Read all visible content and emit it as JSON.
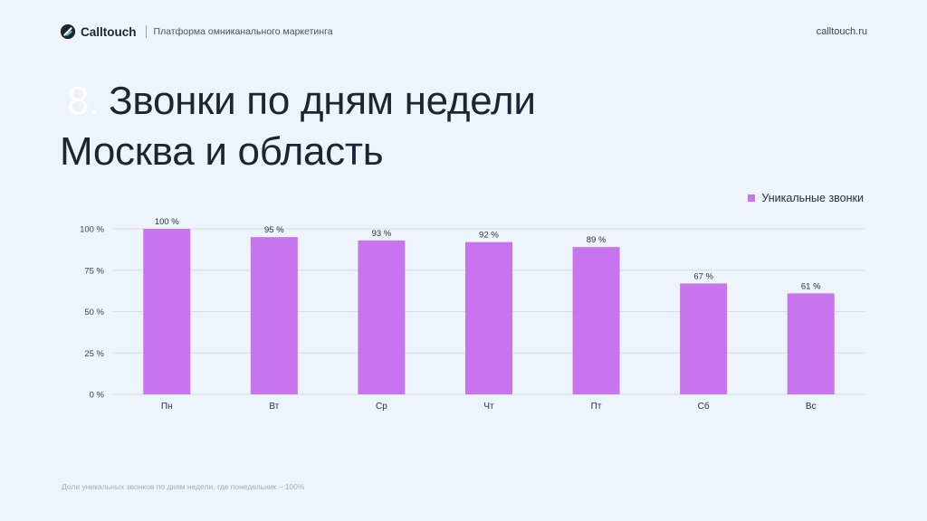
{
  "header": {
    "brand": "Calltouch",
    "tagline": "Платформа омниканального маркетинга",
    "site": "calltouch.ru",
    "logo_icon": "calltouch-logo-icon"
  },
  "title": {
    "number": "8.",
    "line1": "Звонки по дням недели",
    "line2": "Москва и область"
  },
  "footnote": "Доли уникальных звонков по дням недели, где понедельник – 100%",
  "colors": {
    "bar": "#c774ee",
    "grid": "#d7dce3",
    "accent_dark": "#1f2430",
    "accent_teal": "#4cc3d4"
  },
  "chart_data": {
    "type": "bar",
    "categories": [
      "Пн",
      "Вт",
      "Ср",
      "Чт",
      "Пт",
      "Сб",
      "Вс"
    ],
    "series": [
      {
        "name": "Уникальные звонки",
        "values": [
          100,
          95,
          93,
          92,
          89,
          67,
          61
        ],
        "labels": [
          "100 %",
          "95 %",
          "93 %",
          "92 %",
          "89 %",
          "67 %",
          "61 %"
        ]
      }
    ],
    "yticks": [
      0,
      25,
      50,
      75,
      100
    ],
    "ytick_labels": [
      "0 %",
      "25 %",
      "50 %",
      "75 %",
      "100 %"
    ],
    "ylim": [
      0,
      100
    ],
    "grid": true,
    "legend": "top-right",
    "xlabel": "",
    "ylabel": ""
  }
}
